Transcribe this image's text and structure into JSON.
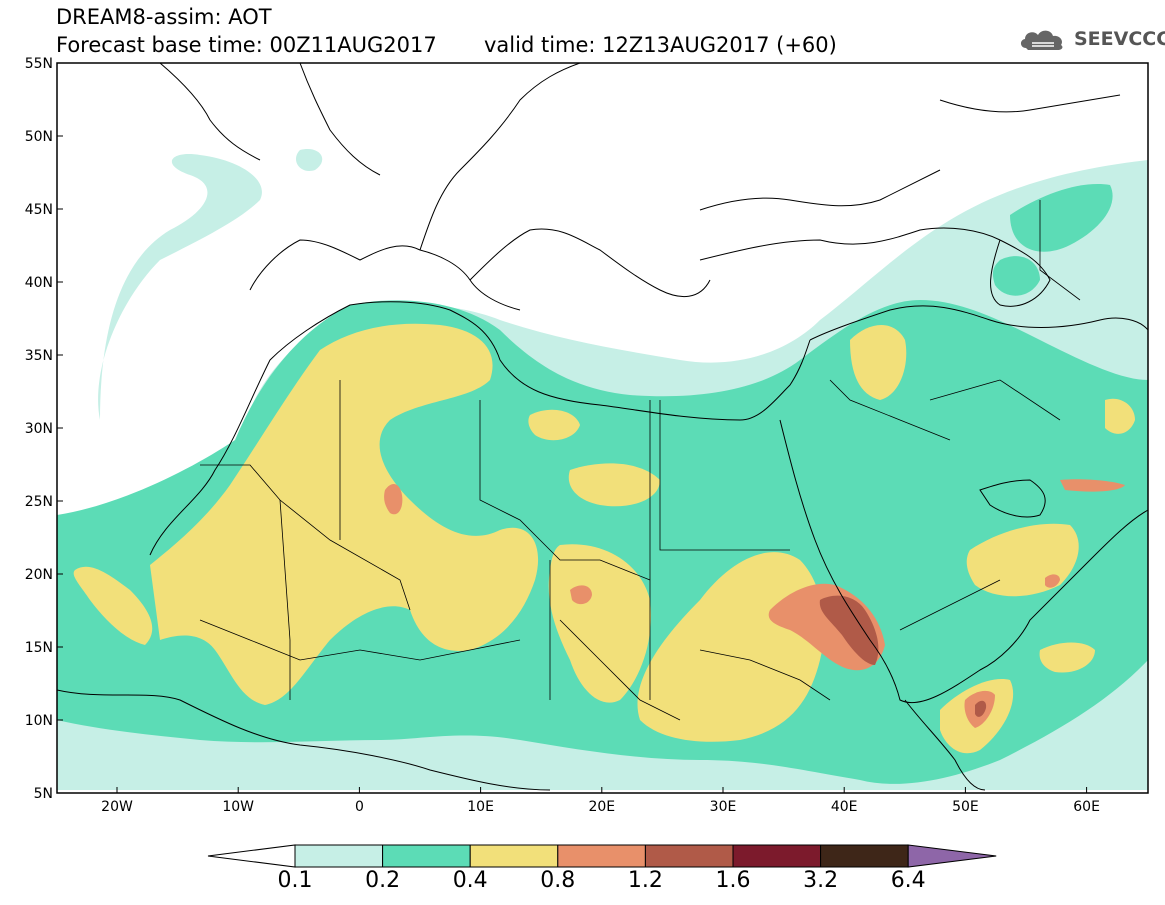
{
  "header": {
    "title_line1": "DREAM8-assim: AOT",
    "title_line2": "Forecast base time: 00Z11AUG2017",
    "valid_time": "valid time: 12Z13AUG2017 (+60)",
    "logo_text": "SEEVCCC"
  },
  "map": {
    "lat_labels": [
      "55N",
      "50N",
      "45N",
      "40N",
      "35N",
      "30N",
      "25N",
      "20N",
      "15N",
      "10N",
      "5N"
    ],
    "lon_labels": [
      "20W",
      "10W",
      "0",
      "10E",
      "20E",
      "30E",
      "40E",
      "50E",
      "60E"
    ]
  },
  "colorbar": {
    "colors": [
      "#ffffff",
      "#c6efe6",
      "#5cdcb6",
      "#f2e07a",
      "#e8906a",
      "#b05a48",
      "#7c1a2c",
      "#3e2618",
      "#8e66a8"
    ],
    "labels": [
      "0.1",
      "0.2",
      "0.4",
      "0.8",
      "1.2",
      "1.6",
      "3.2",
      "6.4"
    ]
  }
}
